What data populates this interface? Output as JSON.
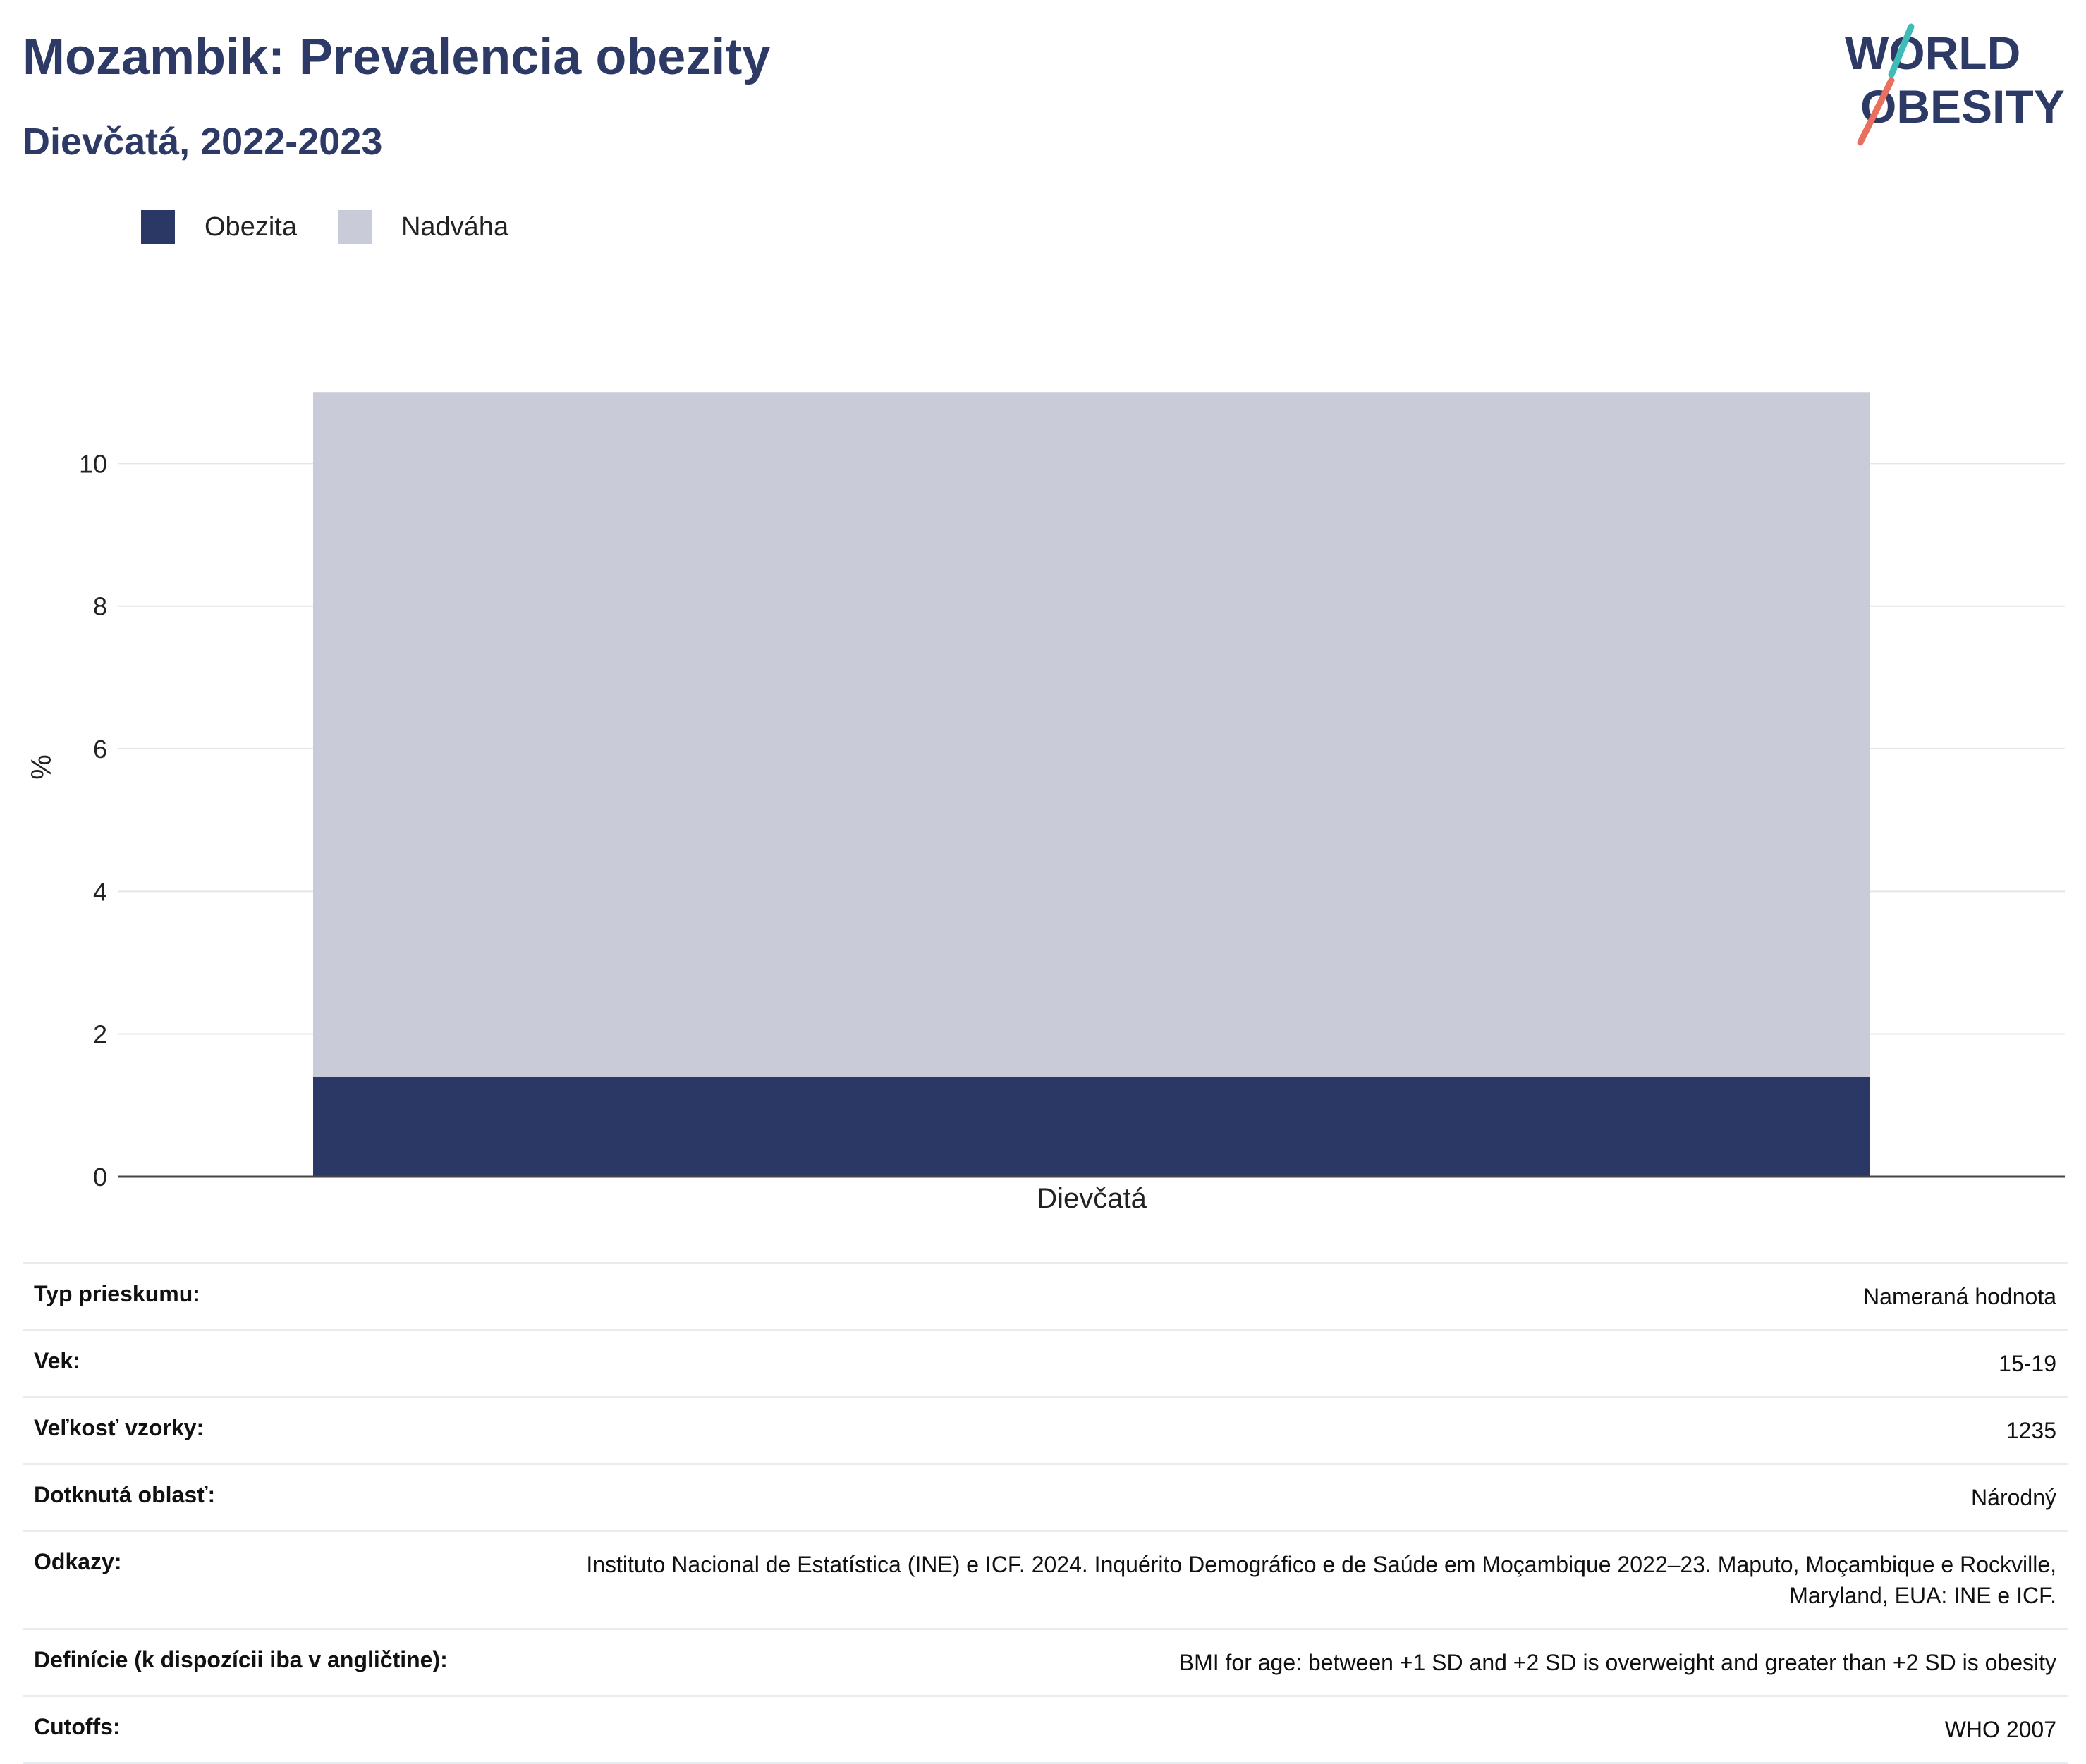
{
  "title": "Mozambik: Prevalencia obezity",
  "subtitle": "Dievčatá, 2022-2023",
  "logo": {
    "line1": "WORLD",
    "line2": "OBESITY"
  },
  "colors": {
    "obesity": "#2b3765",
    "overweight": "#c9ccd8",
    "title": "#2d3a66",
    "logo_teal": "#3dbcb8",
    "logo_coral": "#e8705f"
  },
  "legend": [
    {
      "label": "Obezita",
      "color": "#2b3765"
    },
    {
      "label": "Nadváha",
      "color": "#c9ccd8"
    }
  ],
  "chart_data": {
    "type": "bar",
    "stacked": true,
    "categories": [
      "Dievčatá"
    ],
    "series": [
      {
        "name": "Obezita",
        "values": [
          1.4
        ]
      },
      {
        "name": "Nadváha",
        "values": [
          9.6
        ]
      }
    ],
    "ylabel": "%",
    "xlabel": "",
    "ylim": [
      0,
      11.2
    ],
    "yticks": [
      0,
      2,
      4,
      6,
      8,
      10
    ],
    "grid": true,
    "legend_position": "top-left"
  },
  "info_table": [
    {
      "key": "Typ prieskumu:",
      "value": "Nameraná hodnota"
    },
    {
      "key": "Vek:",
      "value": "15-19"
    },
    {
      "key": "Veľkosť vzorky:",
      "value": "1235"
    },
    {
      "key": "Dotknutá oblasť:",
      "value": "Národný"
    },
    {
      "key": "Odkazy:",
      "value": "Instituto Nacional de Estatística (INE) e ICF. 2024. Inquérito Demográfico e de Saúde em Moçambique 2022–23. Maputo, Moçambique e Rockville, Maryland, EUA: INE e ICF."
    },
    {
      "key": "Definície (k dispozícii iba v angličtine):",
      "value": "BMI for age: between +1 SD and +2 SD is overweight and greater than +2 SD is obesity"
    },
    {
      "key": "Cutoffs:",
      "value": "WHO 2007"
    }
  ]
}
